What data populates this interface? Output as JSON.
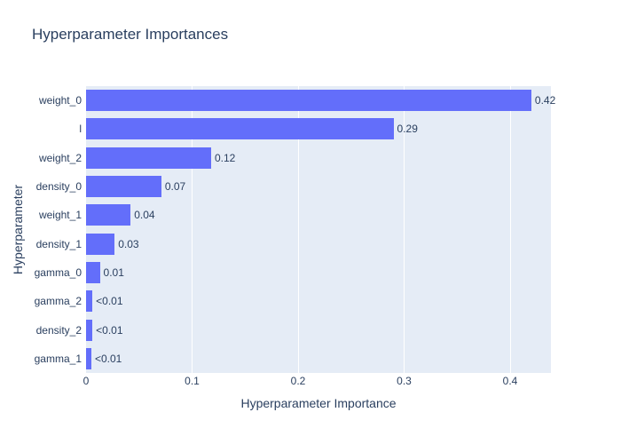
{
  "chart_data": {
    "type": "bar",
    "orientation": "horizontal",
    "title": "Hyperparameter Importances",
    "xlabel": "Hyperparameter Importance",
    "ylabel": "Hyperparameter",
    "categories": [
      "weight_0",
      "l",
      "weight_2",
      "density_0",
      "weight_1",
      "density_1",
      "gamma_0",
      "gamma_2",
      "density_2",
      "gamma_1"
    ],
    "values": [
      0.42,
      0.29,
      0.118,
      0.071,
      0.042,
      0.027,
      0.013,
      0.006,
      0.006,
      0.005
    ],
    "value_labels": [
      "0.42",
      "0.29",
      "0.12",
      "0.07",
      "0.04",
      "0.03",
      "0.01",
      "<0.01",
      "<0.01",
      "<0.01"
    ],
    "xtick_labels": [
      "0",
      "0.1",
      "0.2",
      "0.3",
      "0.4"
    ],
    "xtick_values": [
      0,
      0.1,
      0.2,
      0.3,
      0.4
    ],
    "xlim": [
      0,
      0.4385
    ],
    "grid": true,
    "legend": false,
    "colors": {
      "bar": "#636efa",
      "plot_background": "#e5ecf6",
      "gridline": "#ffffff",
      "text": "#2a3f5f",
      "figure_background": "#ffffff"
    }
  }
}
